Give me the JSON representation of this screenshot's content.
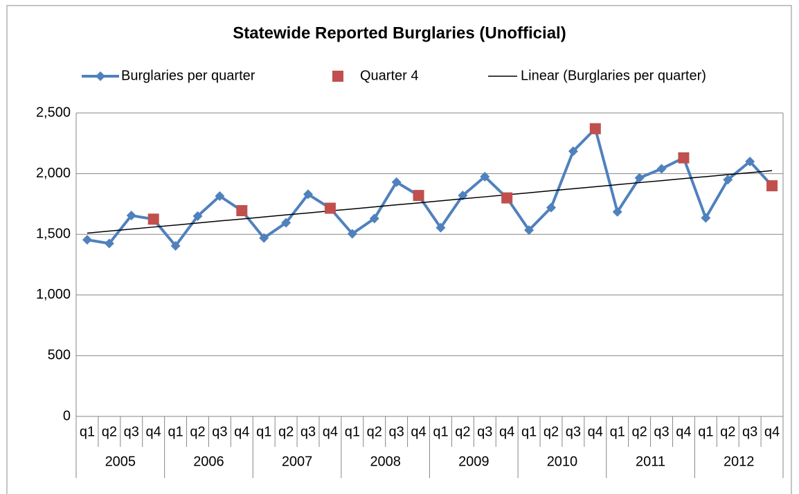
{
  "chart_data": {
    "type": "line",
    "title": "Statewide Reported Burglaries (Unofficial)",
    "categories": [
      "q1",
      "q2",
      "q3",
      "q4",
      "q1",
      "q2",
      "q3",
      "q4",
      "q1",
      "q2",
      "q3",
      "q4",
      "q1",
      "q2",
      "q3",
      "q4",
      "q1",
      "q2",
      "q3",
      "q4",
      "q1",
      "q2",
      "q3",
      "q4",
      "q1",
      "q2",
      "q3",
      "q4",
      "q1",
      "q2",
      "q3",
      "q4"
    ],
    "category_groups": [
      "2005",
      "2006",
      "2007",
      "2008",
      "2009",
      "2010",
      "2011",
      "2012"
    ],
    "series": [
      {
        "name": "Burglaries per quarter",
        "color": "#4f81bd",
        "marker": "diamond",
        "values": [
          1455,
          1425,
          1655,
          1625,
          1405,
          1650,
          1815,
          1695,
          1470,
          1595,
          1830,
          1715,
          1505,
          1630,
          1930,
          1820,
          1555,
          1820,
          1975,
          1800,
          1535,
          1720,
          2185,
          2370,
          1685,
          1965,
          2040,
          2130,
          1635,
          1950,
          2100,
          1900
        ]
      },
      {
        "name": "Quarter 4",
        "color": "#c0504d",
        "marker": "square",
        "values": [
          null,
          null,
          null,
          1625,
          null,
          null,
          null,
          1695,
          null,
          null,
          null,
          1715,
          null,
          null,
          null,
          1820,
          null,
          null,
          null,
          1800,
          null,
          null,
          null,
          2370,
          null,
          null,
          null,
          2130,
          null,
          null,
          null,
          1900
        ]
      },
      {
        "name": "Linear (Burglaries per quarter)",
        "color": "#000000",
        "marker": "none",
        "values": [
          1510,
          1527,
          1543,
          1560,
          1576,
          1593,
          1610,
          1626,
          1643,
          1660,
          1676,
          1693,
          1709,
          1726,
          1743,
          1759,
          1776,
          1793,
          1809,
          1826,
          1842,
          1859,
          1876,
          1892,
          1909,
          1926,
          1942,
          1959,
          1975,
          1992,
          2008,
          2025
        ]
      }
    ],
    "ylim": [
      0,
      2500
    ],
    "yticks": [
      0,
      500,
      {
        "value": 1000,
        "label": "1,000"
      },
      {
        "value": 1500,
        "label": "1,500"
      },
      {
        "value": 2000,
        "label": "2,000"
      },
      {
        "value": 2500,
        "label": "2,500"
      }
    ],
    "grid": true,
    "legend": "top"
  }
}
